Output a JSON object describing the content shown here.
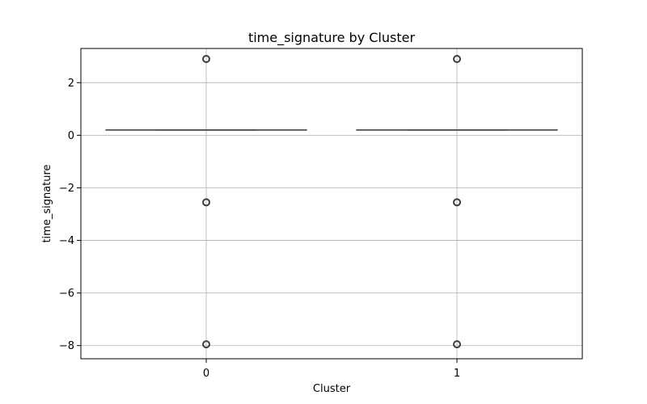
{
  "chart_data": {
    "type": "box",
    "title": "time_signature by Cluster",
    "xlabel": "Cluster",
    "ylabel": "time_signature",
    "categories": [
      "0",
      "1"
    ],
    "ylim": [
      -8.5,
      3.3
    ],
    "yticks": [
      2,
      0,
      -2,
      -4,
      -6,
      -8
    ],
    "ytick_labels": [
      "2",
      "0",
      "−2",
      "−4",
      "−6",
      "−8"
    ],
    "grid": true,
    "boxes": [
      {
        "category": "0",
        "whisker_low": 0.2,
        "q1": 0.2,
        "median": 0.2,
        "q3": 0.2,
        "whisker_high": 0.2,
        "outliers": [
          2.9,
          -2.55,
          -7.95
        ]
      },
      {
        "category": "1",
        "whisker_low": 0.2,
        "q1": 0.2,
        "median": 0.2,
        "q3": 0.2,
        "whisker_high": 0.2,
        "outliers": [
          2.9,
          -2.55,
          -7.95
        ]
      }
    ],
    "colors": {
      "box_line": "#4d4d4d",
      "grid": "#b0b0b0",
      "outlier": "#3d3d3d"
    }
  }
}
